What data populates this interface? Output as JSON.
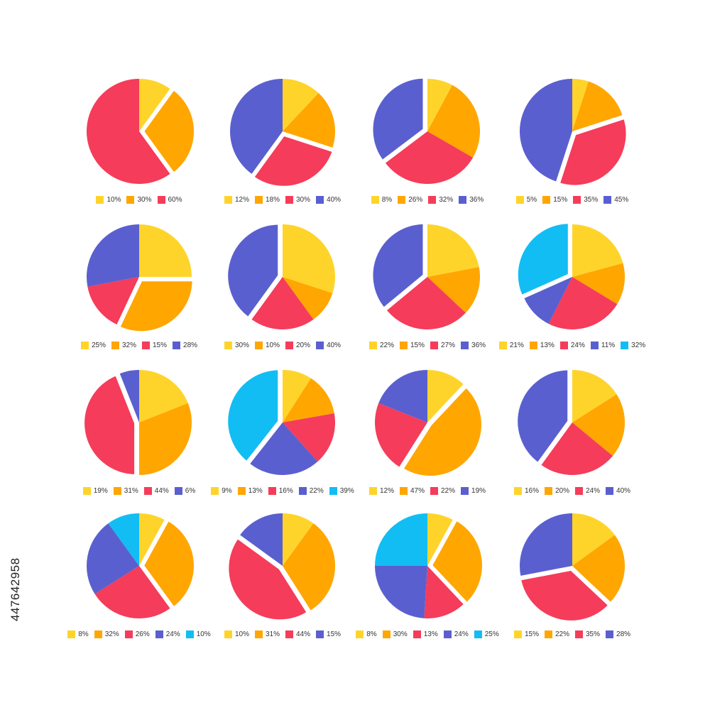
{
  "colors": {
    "yellow": "#FFD42A",
    "orange": "#FFA600",
    "red": "#F53C5A",
    "purple": "#5A5FCF",
    "cyan": "#12BDF4"
  },
  "stock_id": "447642958",
  "chart_data": [
    {
      "type": "pie",
      "slices": [
        {
          "label": "10%",
          "value": 10,
          "color": "yellow"
        },
        {
          "label": "30%",
          "value": 30,
          "color": "orange",
          "explode": true
        },
        {
          "label": "60%",
          "value": 60,
          "color": "red"
        }
      ]
    },
    {
      "type": "pie",
      "slices": [
        {
          "label": "12%",
          "value": 12,
          "color": "yellow"
        },
        {
          "label": "18%",
          "value": 18,
          "color": "orange"
        },
        {
          "label": "30%",
          "value": 30,
          "color": "red",
          "explode": true
        },
        {
          "label": "40%",
          "value": 40,
          "color": "purple"
        }
      ]
    },
    {
      "type": "pie",
      "slices": [
        {
          "label": "8%",
          "value": 8,
          "color": "yellow"
        },
        {
          "label": "26%",
          "value": 26,
          "color": "orange"
        },
        {
          "label": "32%",
          "value": 32,
          "color": "red"
        },
        {
          "label": "36%",
          "value": 36,
          "color": "purple",
          "explode": true
        }
      ]
    },
    {
      "type": "pie",
      "slices": [
        {
          "label": "5%",
          "value": 5,
          "color": "yellow"
        },
        {
          "label": "15%",
          "value": 15,
          "color": "orange"
        },
        {
          "label": "35%",
          "value": 35,
          "color": "red",
          "explode": true
        },
        {
          "label": "45%",
          "value": 45,
          "color": "purple"
        }
      ]
    },
    {
      "type": "pie",
      "slices": [
        {
          "label": "25%",
          "value": 25,
          "color": "yellow"
        },
        {
          "label": "32%",
          "value": 32,
          "color": "orange",
          "explode": true
        },
        {
          "label": "15%",
          "value": 15,
          "color": "red"
        },
        {
          "label": "28%",
          "value": 28,
          "color": "purple"
        }
      ]
    },
    {
      "type": "pie",
      "slices": [
        {
          "label": "30%",
          "value": 30,
          "color": "yellow"
        },
        {
          "label": "10%",
          "value": 10,
          "color": "orange"
        },
        {
          "label": "20%",
          "value": 20,
          "color": "red"
        },
        {
          "label": "40%",
          "value": 40,
          "color": "purple",
          "explode": true
        }
      ]
    },
    {
      "type": "pie",
      "slices": [
        {
          "label": "22%",
          "value": 22,
          "color": "yellow"
        },
        {
          "label": "15%",
          "value": 15,
          "color": "orange"
        },
        {
          "label": "27%",
          "value": 27,
          "color": "red"
        },
        {
          "label": "36%",
          "value": 36,
          "color": "purple",
          "explode": true
        }
      ]
    },
    {
      "type": "pie",
      "slices": [
        {
          "label": "21%",
          "value": 21,
          "color": "yellow"
        },
        {
          "label": "13%",
          "value": 13,
          "color": "orange"
        },
        {
          "label": "24%",
          "value": 24,
          "color": "red"
        },
        {
          "label": "11%",
          "value": 11,
          "color": "purple"
        },
        {
          "label": "32%",
          "value": 32,
          "color": "cyan",
          "explode": true
        }
      ]
    },
    {
      "type": "pie",
      "slices": [
        {
          "label": "19%",
          "value": 19,
          "color": "yellow"
        },
        {
          "label": "31%",
          "value": 31,
          "color": "orange"
        },
        {
          "label": "44%",
          "value": 44,
          "color": "red",
          "explode": true
        },
        {
          "label": "6%",
          "value": 6,
          "color": "purple"
        }
      ]
    },
    {
      "type": "pie",
      "slices": [
        {
          "label": "9%",
          "value": 9,
          "color": "yellow"
        },
        {
          "label": "13%",
          "value": 13,
          "color": "orange"
        },
        {
          "label": "16%",
          "value": 16,
          "color": "red"
        },
        {
          "label": "22%",
          "value": 22,
          "color": "purple"
        },
        {
          "label": "39%",
          "value": 39,
          "color": "cyan",
          "explode": true
        }
      ]
    },
    {
      "type": "pie",
      "slices": [
        {
          "label": "12%",
          "value": 12,
          "color": "yellow"
        },
        {
          "label": "47%",
          "value": 47,
          "color": "orange",
          "explode": true
        },
        {
          "label": "22%",
          "value": 22,
          "color": "red"
        },
        {
          "label": "19%",
          "value": 19,
          "color": "purple"
        }
      ]
    },
    {
      "type": "pie",
      "slices": [
        {
          "label": "16%",
          "value": 16,
          "color": "yellow"
        },
        {
          "label": "20%",
          "value": 20,
          "color": "orange"
        },
        {
          "label": "24%",
          "value": 24,
          "color": "red"
        },
        {
          "label": "40%",
          "value": 40,
          "color": "purple",
          "explode": true
        }
      ]
    },
    {
      "type": "pie",
      "slices": [
        {
          "label": "8%",
          "value": 8,
          "color": "yellow"
        },
        {
          "label": "32%",
          "value": 32,
          "color": "orange",
          "explode": true
        },
        {
          "label": "26%",
          "value": 26,
          "color": "red"
        },
        {
          "label": "24%",
          "value": 24,
          "color": "purple"
        },
        {
          "label": "10%",
          "value": 10,
          "color": "cyan"
        }
      ]
    },
    {
      "type": "pie",
      "slices": [
        {
          "label": "10%",
          "value": 10,
          "color": "yellow"
        },
        {
          "label": "31%",
          "value": 31,
          "color": "orange"
        },
        {
          "label": "44%",
          "value": 44,
          "color": "red",
          "explode": true
        },
        {
          "label": "15%",
          "value": 15,
          "color": "purple"
        }
      ]
    },
    {
      "type": "pie",
      "slices": [
        {
          "label": "8%",
          "value": 8,
          "color": "yellow"
        },
        {
          "label": "30%",
          "value": 30,
          "color": "orange",
          "explode": true
        },
        {
          "label": "13%",
          "value": 13,
          "color": "red"
        },
        {
          "label": "24%",
          "value": 24,
          "color": "purple"
        },
        {
          "label": "25%",
          "value": 25,
          "color": "cyan"
        }
      ]
    },
    {
      "type": "pie",
      "slices": [
        {
          "label": "15%",
          "value": 15,
          "color": "yellow"
        },
        {
          "label": "22%",
          "value": 22,
          "color": "orange"
        },
        {
          "label": "35%",
          "value": 35,
          "color": "red",
          "explode": true
        },
        {
          "label": "28%",
          "value": 28,
          "color": "purple"
        }
      ]
    }
  ]
}
